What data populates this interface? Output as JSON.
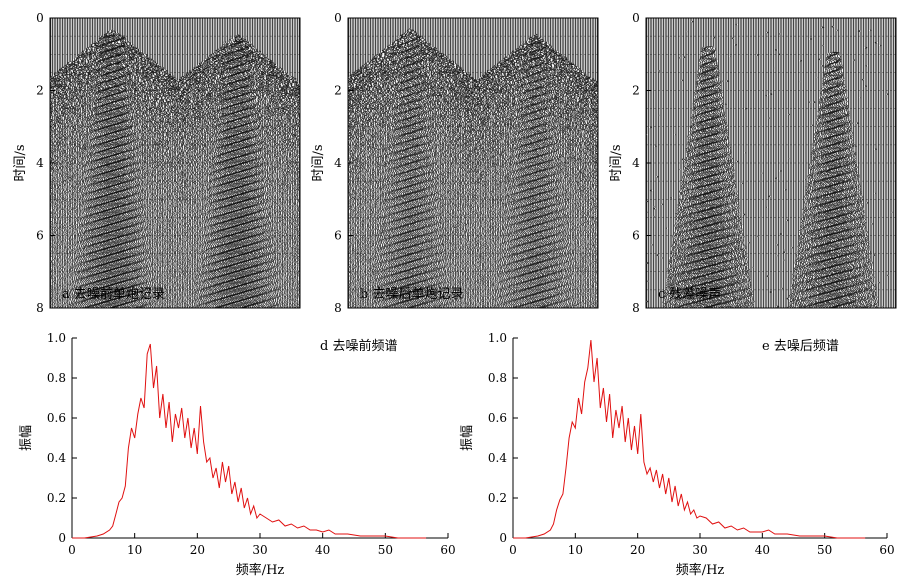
{
  "palette": {
    "trace": "#111111",
    "spectrum_line": "#e01010",
    "axis": "#000000",
    "dashed_grid": "#555555"
  },
  "chart_data": [
    {
      "type": "heatmap",
      "id": "a",
      "label": "a 去噪前单炮记录",
      "ylabel": "时间/s",
      "yticks": [
        0,
        2,
        4,
        6,
        8
      ],
      "ylim": [
        0,
        8
      ],
      "y_reversed": true,
      "dashed_gridlines_y": [
        0.5,
        1.0,
        1.5,
        2.0,
        2.5,
        3.0,
        3.5,
        4.0,
        4.5,
        5.0,
        5.5,
        6.0,
        6.5,
        7.0,
        7.5
      ]
    },
    {
      "type": "heatmap",
      "id": "b",
      "label": "b 去噪后单炮记录",
      "ylabel": "时间/s",
      "yticks": [
        0,
        2,
        4,
        6,
        8
      ],
      "ylim": [
        0,
        8
      ],
      "y_reversed": true,
      "dashed_gridlines_y": [
        0.5,
        1.0,
        1.5,
        2.0,
        2.5,
        3.0,
        3.5,
        4.0,
        4.5,
        5.0,
        5.5,
        6.0,
        6.5,
        7.0,
        7.5
      ]
    },
    {
      "type": "heatmap",
      "id": "c",
      "label": "c 残差噪声",
      "ylabel": "时间/s",
      "yticks": [
        0,
        2,
        4,
        6,
        8
      ],
      "ylim": [
        0,
        8
      ],
      "y_reversed": true,
      "dashed_gridlines_y": [
        0.5,
        1.0,
        1.5,
        2.0,
        2.5,
        3.0,
        3.5,
        4.0,
        4.5,
        5.0,
        5.5,
        6.0,
        6.5,
        7.0,
        7.5
      ]
    },
    {
      "type": "line",
      "id": "d",
      "label": "d 去噪前频谱",
      "xlabel": "频率/Hz",
      "ylabel": "振幅",
      "xlim": [
        0,
        60
      ],
      "ylim": [
        0,
        1.0
      ],
      "xticks": [
        0,
        10,
        20,
        30,
        40,
        50,
        60
      ],
      "yticks": [
        0,
        0.2,
        0.4,
        0.6,
        0.8,
        1.0
      ],
      "ytick_labels": [
        "0",
        "0.2",
        "0.4",
        "0.6",
        "0.8",
        "1.0"
      ],
      "x": [
        0,
        2,
        4,
        5,
        6,
        6.5,
        7,
        7.5,
        8,
        8.5,
        9,
        9.5,
        10,
        10.5,
        11,
        11.5,
        12,
        12.5,
        13,
        13.5,
        14,
        14.5,
        15,
        15.5,
        16,
        16.5,
        17,
        17.5,
        18,
        18.5,
        19,
        19.5,
        20,
        20.5,
        21,
        21.5,
        22,
        22.5,
        23,
        23.5,
        24,
        24.5,
        25,
        25.5,
        26,
        26.5,
        27,
        27.5,
        28,
        28.5,
        29,
        29.5,
        30,
        31,
        32,
        33,
        34,
        35,
        36,
        37,
        38,
        39,
        40,
        41,
        42,
        44,
        46,
        48,
        50,
        52,
        54,
        56.5
      ],
      "y": [
        0.0,
        0.0,
        0.01,
        0.02,
        0.04,
        0.06,
        0.12,
        0.18,
        0.2,
        0.26,
        0.45,
        0.55,
        0.5,
        0.62,
        0.7,
        0.65,
        0.92,
        0.97,
        0.75,
        0.86,
        0.6,
        0.72,
        0.55,
        0.68,
        0.48,
        0.62,
        0.55,
        0.65,
        0.5,
        0.6,
        0.45,
        0.55,
        0.42,
        0.66,
        0.48,
        0.38,
        0.4,
        0.3,
        0.35,
        0.25,
        0.38,
        0.28,
        0.36,
        0.22,
        0.28,
        0.18,
        0.25,
        0.15,
        0.2,
        0.12,
        0.16,
        0.1,
        0.12,
        0.1,
        0.08,
        0.09,
        0.06,
        0.07,
        0.05,
        0.06,
        0.04,
        0.04,
        0.03,
        0.04,
        0.02,
        0.02,
        0.01,
        0.01,
        0.01,
        0.0,
        0.0,
        0.0
      ]
    },
    {
      "type": "line",
      "id": "e",
      "label": "e 去噪后频谱",
      "xlabel": "频率/Hz",
      "ylabel": "振幅",
      "xlim": [
        0,
        60
      ],
      "ylim": [
        0,
        1.0
      ],
      "xticks": [
        0,
        10,
        20,
        30,
        40,
        50,
        60
      ],
      "yticks": [
        0,
        0.2,
        0.4,
        0.6,
        0.8,
        1.0
      ],
      "ytick_labels": [
        "0",
        "0.2",
        "0.4",
        "0.6",
        "0.8",
        "1.0"
      ],
      "x": [
        0,
        2,
        4,
        5,
        6,
        6.5,
        7,
        7.5,
        8,
        8.5,
        9,
        9.5,
        10,
        10.5,
        11,
        11.5,
        12,
        12.5,
        13,
        13.5,
        14,
        14.5,
        15,
        15.5,
        16,
        16.5,
        17,
        17.5,
        18,
        18.5,
        19,
        19.5,
        20,
        20.5,
        21,
        21.5,
        22,
        22.5,
        23,
        23.5,
        24,
        24.5,
        25,
        25.5,
        26,
        26.5,
        27,
        27.5,
        28,
        28.5,
        29,
        29.5,
        30,
        31,
        32,
        33,
        34,
        35,
        36,
        37,
        38,
        39,
        40,
        41,
        42,
        44,
        46,
        48,
        50,
        52,
        54,
        56.5
      ],
      "y": [
        0.0,
        0.0,
        0.01,
        0.02,
        0.04,
        0.07,
        0.14,
        0.19,
        0.22,
        0.35,
        0.5,
        0.58,
        0.55,
        0.7,
        0.62,
        0.78,
        0.85,
        0.99,
        0.78,
        0.9,
        0.65,
        0.75,
        0.58,
        0.72,
        0.5,
        0.64,
        0.55,
        0.66,
        0.48,
        0.6,
        0.44,
        0.56,
        0.42,
        0.62,
        0.38,
        0.32,
        0.35,
        0.28,
        0.34,
        0.25,
        0.32,
        0.22,
        0.3,
        0.18,
        0.26,
        0.16,
        0.22,
        0.14,
        0.18,
        0.12,
        0.14,
        0.1,
        0.11,
        0.1,
        0.07,
        0.08,
        0.05,
        0.06,
        0.04,
        0.05,
        0.03,
        0.03,
        0.03,
        0.04,
        0.02,
        0.02,
        0.01,
        0.01,
        0.01,
        0.0,
        0.0,
        0.0
      ]
    }
  ]
}
